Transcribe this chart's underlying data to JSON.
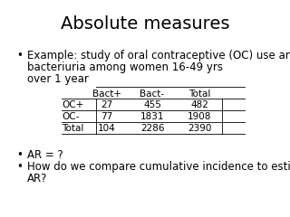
{
  "title": "Absolute measures",
  "title_fontsize": 14,
  "background_color": "#ffffff",
  "bullet1_line1": "Example: study of oral contraceptive (OC) use and",
  "bullet1_line2": "bacteriuria among women 16-49 yrs",
  "bullet1_line3": "over 1 year",
  "table_col_headers": [
    "",
    "Bact+",
    "Bact-",
    "Total"
  ],
  "table_rows": [
    [
      "OC+",
      "27",
      "455",
      "482"
    ],
    [
      "OC-",
      "77",
      "1831",
      "1908"
    ],
    [
      "Total",
      "104",
      "2286",
      "2390"
    ]
  ],
  "bullet2": "AR = ?",
  "bullet3_line1": "How do we compare cumulative incidence to estimate",
  "bullet3_line2": "AR?",
  "font_size": 8.5,
  "small_font": 7.5
}
